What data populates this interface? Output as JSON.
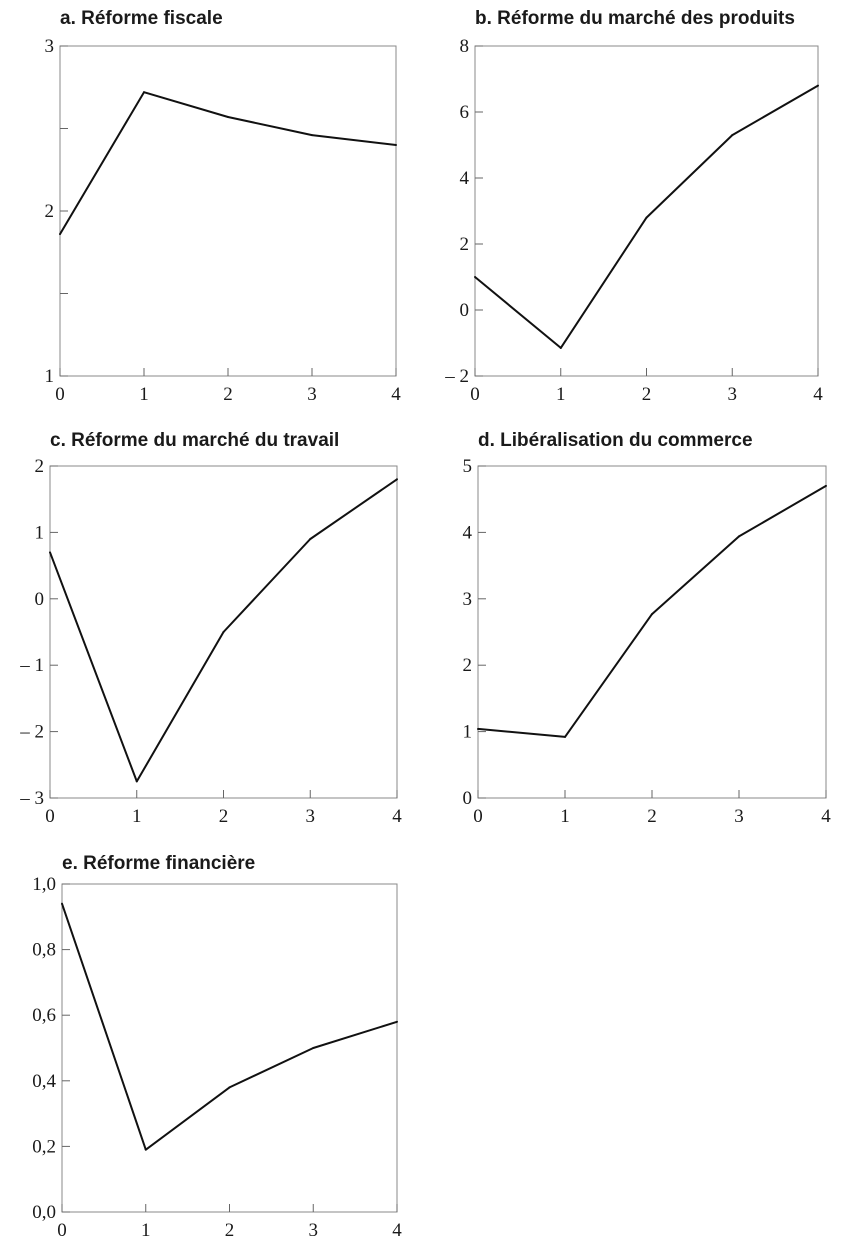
{
  "chart_data": [
    {
      "type": "line",
      "title": "a. Réforme fiscale",
      "x": [
        0,
        1,
        2,
        3,
        4
      ],
      "xticks": [
        "0",
        "1",
        "2",
        "3",
        "4"
      ],
      "xlim": [
        0,
        4
      ],
      "ylim": [
        1,
        3
      ],
      "yticks": [
        1,
        1.5,
        2,
        2.5,
        3
      ],
      "ytick_labels": [
        "1",
        "",
        "2",
        "",
        "3"
      ],
      "series": [
        {
          "values": [
            1.86,
            2.72,
            2.57,
            2.46,
            2.4
          ]
        }
      ]
    },
    {
      "type": "line",
      "title": "b. Réforme du marché des produits",
      "x": [
        0,
        1,
        2,
        3,
        4
      ],
      "xticks": [
        "0",
        "1",
        "2",
        "3",
        "4"
      ],
      "xlim": [
        0,
        4
      ],
      "ylim": [
        -2,
        8
      ],
      "yticks": [
        -2,
        0,
        2,
        4,
        6,
        8
      ],
      "ytick_labels": [
        "– 2",
        "0",
        "2",
        "4",
        "6",
        "8"
      ],
      "series": [
        {
          "values": [
            1.0,
            -1.15,
            2.8,
            5.3,
            6.8
          ]
        }
      ]
    },
    {
      "type": "line",
      "title": "c. Réforme du marché du travail",
      "x": [
        0,
        1,
        2,
        3,
        4
      ],
      "xticks": [
        "0",
        "1",
        "2",
        "3",
        "4"
      ],
      "xlim": [
        0,
        4
      ],
      "ylim": [
        -3,
        2
      ],
      "yticks": [
        -3,
        -2,
        -1,
        0,
        1,
        2
      ],
      "ytick_labels": [
        "– 3",
        "– 2",
        "– 1",
        "0",
        "1",
        "2"
      ],
      "series": [
        {
          "values": [
            0.7,
            -2.75,
            -0.5,
            0.9,
            1.8
          ]
        }
      ]
    },
    {
      "type": "line",
      "title": "d. Libéralisation du commerce",
      "x": [
        0,
        1,
        2,
        3,
        4
      ],
      "xticks": [
        "0",
        "1",
        "2",
        "3",
        "4"
      ],
      "xlim": [
        0,
        4
      ],
      "ylim": [
        0,
        5
      ],
      "yticks": [
        0,
        1,
        2,
        3,
        4,
        5
      ],
      "ytick_labels": [
        "0",
        "1",
        "2",
        "3",
        "4",
        "5"
      ],
      "series": [
        {
          "values": [
            1.04,
            0.92,
            2.77,
            3.94,
            4.7
          ]
        }
      ]
    },
    {
      "type": "line",
      "title": "e. Réforme financière",
      "x": [
        0,
        1,
        2,
        3,
        4
      ],
      "xticks": [
        "0",
        "1",
        "2",
        "3",
        "4"
      ],
      "xlim": [
        0,
        4
      ],
      "ylim": [
        0,
        1
      ],
      "yticks": [
        0,
        0.2,
        0.4,
        0.6,
        0.8,
        1.0
      ],
      "ytick_labels": [
        "0,0",
        "0,2",
        "0,4",
        "0,6",
        "0,8",
        "1,0"
      ],
      "series": [
        {
          "values": [
            0.94,
            0.19,
            0.38,
            0.5,
            0.58
          ]
        }
      ]
    }
  ]
}
